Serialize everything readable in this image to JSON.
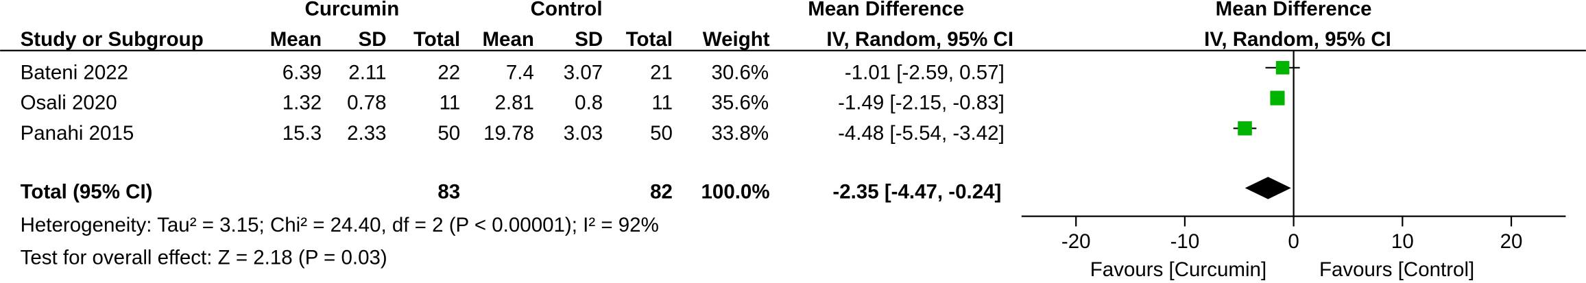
{
  "chart_data": {
    "type": "forest",
    "group_labels": [
      "Curcumin",
      "Control"
    ],
    "effect_header": [
      "Mean Difference",
      "Mean Difference"
    ],
    "columns": [
      "Study or Subgroup",
      "Mean",
      "SD",
      "Total",
      "Mean",
      "SD",
      "Total",
      "Weight",
      "IV, Random, 95% CI",
      "IV, Random, 95% CI"
    ],
    "studies": [
      {
        "name": "Bateni  2022",
        "exp_mean": 6.39,
        "exp_sd": 2.11,
        "exp_total": 22,
        "ctl_mean": 7.4,
        "ctl_sd": 3.07,
        "ctl_total": 21,
        "weight": 30.6,
        "weight_label": "30.6%",
        "md": -1.01,
        "ci": [
          -2.59,
          0.57
        ],
        "md_label": "-1.01 [-2.59, 0.57]"
      },
      {
        "name": "Osali  2020",
        "exp_mean": 1.32,
        "exp_sd": 0.78,
        "exp_total": 11,
        "ctl_mean": 2.81,
        "ctl_sd": 0.8,
        "ctl_total": 11,
        "weight": 35.6,
        "weight_label": "35.6%",
        "md": -1.49,
        "ci": [
          -2.15,
          -0.83
        ],
        "md_label": "-1.49 [-2.15, -0.83]"
      },
      {
        "name": "Panahi  2015",
        "exp_mean": 15.3,
        "exp_sd": 2.33,
        "exp_total": 50,
        "ctl_mean": 19.78,
        "ctl_sd": 3.03,
        "ctl_total": 50,
        "weight": 33.8,
        "weight_label": "33.8%",
        "md": -4.48,
        "ci": [
          -5.54,
          -3.42
        ],
        "md_label": "-4.48 [-5.54, -3.42]"
      }
    ],
    "total": {
      "name": "Total (95% CI)",
      "exp_total": 83,
      "ctl_total": 82,
      "weight": 100,
      "weight_label": "100.0%",
      "md": -2.35,
      "ci": [
        -4.47,
        -0.24
      ],
      "md_label": "-2.35 [-4.47, -0.24]"
    },
    "heterogeneity": "Heterogeneity: Tau² = 3.15; Chi² = 24.40, df = 2 (P < 0.00001); I² = 92%",
    "overall_effect": "Test for overall effect: Z = 2.18 (P = 0.03)",
    "xlim": [
      -25,
      25
    ],
    "xticks": [
      -20,
      -10,
      0,
      10,
      20
    ],
    "favours": [
      "Favours [Curcumin]",
      "Favours [Control]"
    ],
    "marker_color": "#00b400"
  }
}
